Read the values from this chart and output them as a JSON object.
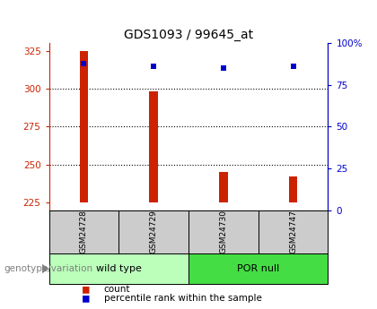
{
  "title": "GDS1093 / 99645_at",
  "samples": [
    "GSM24728",
    "GSM24729",
    "GSM24730",
    "GSM24747"
  ],
  "bar_values": [
    325,
    298,
    245,
    242
  ],
  "bar_baseline": 225,
  "bar_color": "#cc2200",
  "bar_width": 0.12,
  "percentile_values": [
    88,
    86,
    85,
    86
  ],
  "percentile_color": "#0000cc",
  "ylim_left": [
    220,
    330
  ],
  "ylim_right": [
    0,
    100
  ],
  "yticks_left": [
    225,
    250,
    275,
    300,
    325
  ],
  "yticks_right": [
    0,
    25,
    50,
    75,
    100
  ],
  "grid_values": [
    250,
    275,
    300
  ],
  "group_wild": {
    "label": "wild type",
    "indices": [
      0,
      1
    ],
    "color": "#bbffbb"
  },
  "group_por": {
    "label": "POR null",
    "indices": [
      2,
      3
    ],
    "color": "#44dd44"
  },
  "legend_count_color": "#cc2200",
  "legend_percentile_color": "#0000cc",
  "xlabel_genotype": "genotype/variation",
  "tick_label_color_left": "#cc2200",
  "tick_label_color_right": "#0000cc",
  "sample_box_color": "#cccccc",
  "spine_color_left": "#cc2200",
  "spine_color_right": "#0000cc"
}
